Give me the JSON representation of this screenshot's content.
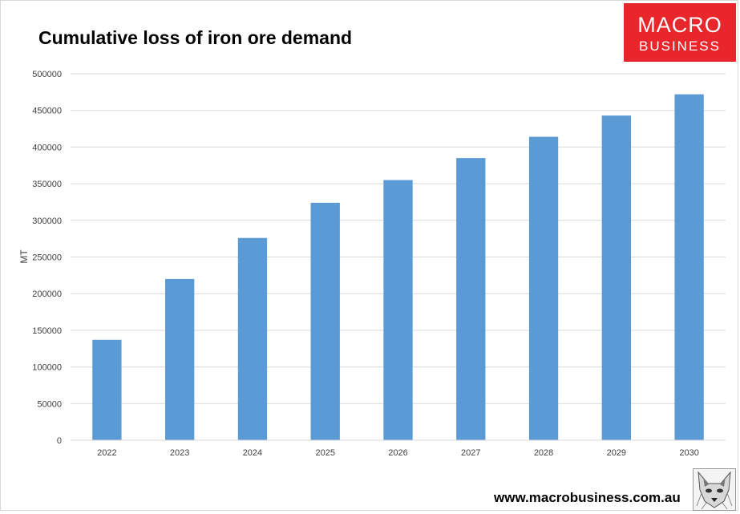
{
  "chart_data": {
    "type": "bar",
    "title": "Cumulative loss of iron ore demand",
    "xlabel": "",
    "ylabel": "MT",
    "categories": [
      "2022",
      "2023",
      "2024",
      "2025",
      "2026",
      "2027",
      "2028",
      "2029",
      "2030"
    ],
    "series": [
      {
        "name": "Cumulative loss",
        "values": [
          137000,
          220000,
          276000,
          324000,
          355000,
          385000,
          414000,
          443000,
          472000
        ]
      }
    ],
    "ylim": [
      0,
      500000
    ],
    "yticks": [
      "0",
      "50000",
      "100000",
      "150000",
      "200000",
      "250000",
      "300000",
      "350000",
      "400000",
      "450000",
      "500000"
    ],
    "grid": true,
    "legend": "none",
    "colors": {
      "bar": "#5b9bd5",
      "grid": "#d9d9d9"
    }
  },
  "logo": {
    "line1": "MACRO",
    "line2": "BUSINESS",
    "color": "#e8262b"
  },
  "footer": {
    "url": "www.macrobusiness.com.au"
  },
  "icons": {
    "mascot": "wolf-icon"
  }
}
